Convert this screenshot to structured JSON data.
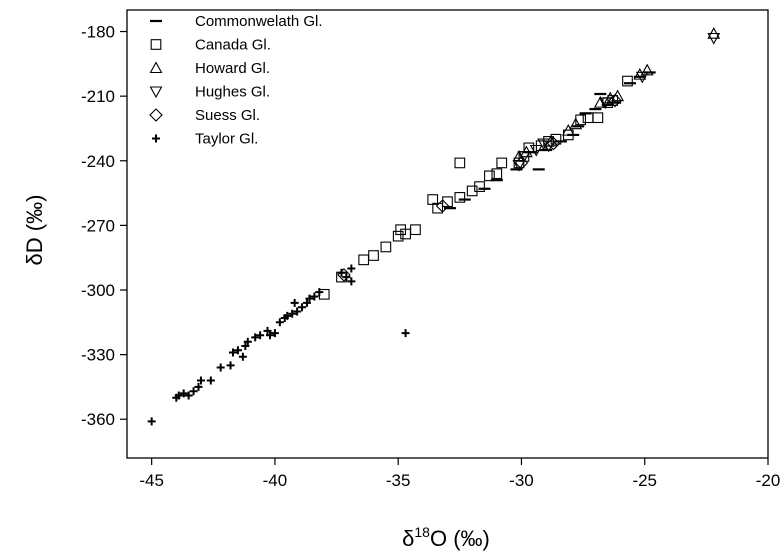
{
  "chart_data": {
    "type": "scatter",
    "title": "",
    "xlabel": {
      "prefix": "δ",
      "sup": "18",
      "suffix": "O (‰)"
    },
    "ylabel": "δD (‰)",
    "xlim": [
      -46,
      -20
    ],
    "ylim": [
      -378,
      -170
    ],
    "xticks": [
      -45,
      -40,
      -35,
      -30,
      -25,
      -20
    ],
    "yticks": [
      -180,
      -210,
      -240,
      -270,
      -300,
      -330,
      -360
    ],
    "grid": false,
    "legend_position": "top-left",
    "series": [
      {
        "name": "Commonwelath Gl.",
        "marker": "dash",
        "points": [
          [
            -32.9,
            -262
          ],
          [
            -32.3,
            -258
          ],
          [
            -31.5,
            -253
          ],
          [
            -30.2,
            -244
          ],
          [
            -29.3,
            -244
          ],
          [
            -29.0,
            -235
          ],
          [
            -28.4,
            -231
          ],
          [
            -27.9,
            -228
          ],
          [
            -27.7,
            -224
          ],
          [
            -27.4,
            -218
          ],
          [
            -27.0,
            -216
          ],
          [
            -26.8,
            -209
          ],
          [
            -26.5,
            -214
          ],
          [
            -26.2,
            -213
          ],
          [
            -25.6,
            -204
          ],
          [
            -25.2,
            -201
          ],
          [
            -24.8,
            -199
          ],
          [
            -29.6,
            -236
          ],
          [
            -31.0,
            -249
          ]
        ]
      },
      {
        "name": "Canada Gl.",
        "marker": "square",
        "points": [
          [
            -38.0,
            -302
          ],
          [
            -37.3,
            -294
          ],
          [
            -36.4,
            -286
          ],
          [
            -36.0,
            -284
          ],
          [
            -35.5,
            -280
          ],
          [
            -35.0,
            -275
          ],
          [
            -34.9,
            -272
          ],
          [
            -34.7,
            -274
          ],
          [
            -34.3,
            -272
          ],
          [
            -33.6,
            -258
          ],
          [
            -33.4,
            -262
          ],
          [
            -33.0,
            -259
          ],
          [
            -32.5,
            -257
          ],
          [
            -32.5,
            -241
          ],
          [
            -32.0,
            -254
          ],
          [
            -31.7,
            -252
          ],
          [
            -31.3,
            -247
          ],
          [
            -31.0,
            -246
          ],
          [
            -30.8,
            -241
          ],
          [
            -30.1,
            -241
          ],
          [
            -29.9,
            -238
          ],
          [
            -29.7,
            -234
          ],
          [
            -29.2,
            -233
          ],
          [
            -28.9,
            -231
          ],
          [
            -28.6,
            -230
          ],
          [
            -28.1,
            -228
          ],
          [
            -27.6,
            -221
          ],
          [
            -27.3,
            -220
          ],
          [
            -26.9,
            -220
          ],
          [
            -26.5,
            -213
          ],
          [
            -26.3,
            -212
          ],
          [
            -25.7,
            -203
          ]
        ]
      },
      {
        "name": "Howard Gl.",
        "marker": "triangle-up",
        "points": [
          [
            -22.2,
            -181
          ],
          [
            -24.9,
            -198
          ],
          [
            -25.2,
            -200
          ],
          [
            -26.1,
            -210
          ],
          [
            -26.4,
            -211
          ],
          [
            -26.8,
            -213
          ],
          [
            -27.8,
            -223
          ],
          [
            -28.1,
            -226
          ],
          [
            -28.8,
            -231
          ],
          [
            -29.8,
            -236
          ],
          [
            -30.1,
            -238
          ]
        ]
      },
      {
        "name": "Hughes Gl.",
        "marker": "triangle-down",
        "points": [
          [
            -22.2,
            -183
          ],
          [
            -25.1,
            -201
          ],
          [
            -26.6,
            -213
          ],
          [
            -28.9,
            -233
          ],
          [
            -29.1,
            -232
          ],
          [
            -29.4,
            -235
          ],
          [
            -29.9,
            -238
          ],
          [
            -30.1,
            -242
          ]
        ]
      },
      {
        "name": "Suess Gl.",
        "marker": "diamond",
        "points": [
          [
            -26.2,
            -212
          ],
          [
            -28.7,
            -232
          ],
          [
            -30.0,
            -241
          ],
          [
            -33.2,
            -261
          ],
          [
            -37.2,
            -293
          ]
        ]
      },
      {
        "name": "Taylor Gl.",
        "marker": "plus",
        "points": [
          [
            -45.0,
            -361
          ],
          [
            -44.0,
            -350
          ],
          [
            -43.9,
            -349
          ],
          [
            -43.7,
            -348
          ],
          [
            -43.5,
            -349
          ],
          [
            -43.3,
            -347
          ],
          [
            -43.1,
            -345
          ],
          [
            -43.0,
            -342
          ],
          [
            -42.6,
            -342
          ],
          [
            -42.2,
            -336
          ],
          [
            -41.8,
            -335
          ],
          [
            -41.7,
            -329
          ],
          [
            -41.5,
            -328
          ],
          [
            -41.3,
            -331
          ],
          [
            -41.2,
            -326
          ],
          [
            -41.1,
            -324
          ],
          [
            -40.8,
            -322
          ],
          [
            -40.6,
            -321
          ],
          [
            -40.3,
            -319
          ],
          [
            -40.2,
            -321
          ],
          [
            -40.0,
            -320
          ],
          [
            -39.8,
            -315
          ],
          [
            -39.6,
            -313
          ],
          [
            -39.5,
            -312
          ],
          [
            -39.3,
            -311
          ],
          [
            -39.2,
            -306
          ],
          [
            -39.1,
            -310
          ],
          [
            -38.9,
            -308
          ],
          [
            -38.7,
            -306
          ],
          [
            -38.6,
            -304
          ],
          [
            -38.4,
            -303
          ],
          [
            -38.2,
            -301
          ],
          [
            -37.3,
            -292
          ],
          [
            -37.1,
            -294
          ],
          [
            -36.9,
            -296
          ],
          [
            -36.9,
            -290
          ],
          [
            -34.7,
            -320
          ]
        ]
      }
    ]
  }
}
